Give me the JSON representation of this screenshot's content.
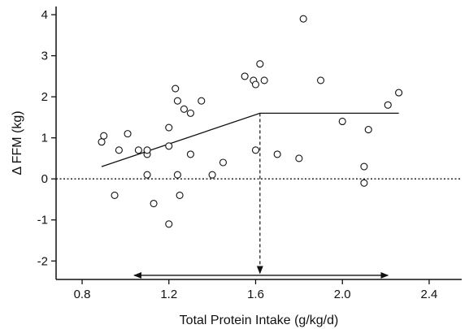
{
  "chart_data": {
    "type": "scatter",
    "title": "",
    "xlabel": "Total Protein Intake (g/kg/d)",
    "ylabel": "Δ FFM (kg)",
    "xlim": [
      0.68,
      2.55
    ],
    "ylim": [
      -2.45,
      4.2
    ],
    "xticks": [
      "0.8",
      "1.2",
      "1.6",
      "2.0",
      "2.4"
    ],
    "yticks": [
      "-2",
      "-1",
      "0",
      "1",
      "2",
      "3",
      "4"
    ],
    "grid": false,
    "legend": "none",
    "points": [
      {
        "x": 0.89,
        "y": 0.9
      },
      {
        "x": 0.9,
        "y": 1.05
      },
      {
        "x": 0.95,
        "y": -0.4
      },
      {
        "x": 0.97,
        "y": 0.7
      },
      {
        "x": 1.01,
        "y": 1.1
      },
      {
        "x": 1.06,
        "y": 0.7
      },
      {
        "x": 1.1,
        "y": 0.1
      },
      {
        "x": 1.1,
        "y": 0.6
      },
      {
        "x": 1.1,
        "y": 0.7
      },
      {
        "x": 1.13,
        "y": -0.6
      },
      {
        "x": 1.2,
        "y": -1.1
      },
      {
        "x": 1.2,
        "y": 0.8
      },
      {
        "x": 1.2,
        "y": 1.25
      },
      {
        "x": 1.23,
        "y": 2.2
      },
      {
        "x": 1.24,
        "y": 1.9
      },
      {
        "x": 1.24,
        "y": 0.1
      },
      {
        "x": 1.25,
        "y": -0.4
      },
      {
        "x": 1.27,
        "y": 1.7
      },
      {
        "x": 1.3,
        "y": 1.6
      },
      {
        "x": 1.3,
        "y": 0.6
      },
      {
        "x": 1.35,
        "y": 1.9
      },
      {
        "x": 1.4,
        "y": 0.1
      },
      {
        "x": 1.45,
        "y": 0.4
      },
      {
        "x": 1.55,
        "y": 2.5
      },
      {
        "x": 1.59,
        "y": 2.4
      },
      {
        "x": 1.6,
        "y": 2.3
      },
      {
        "x": 1.6,
        "y": 0.7
      },
      {
        "x": 1.62,
        "y": 2.8
      },
      {
        "x": 1.64,
        "y": 2.4
      },
      {
        "x": 1.7,
        "y": 0.6
      },
      {
        "x": 1.8,
        "y": 0.5
      },
      {
        "x": 1.82,
        "y": 3.9
      },
      {
        "x": 1.9,
        "y": 2.4
      },
      {
        "x": 2.0,
        "y": 1.4
      },
      {
        "x": 2.1,
        "y": 0.3
      },
      {
        "x": 2.1,
        "y": -0.1
      },
      {
        "x": 2.12,
        "y": 1.2
      },
      {
        "x": 2.21,
        "y": 1.8
      },
      {
        "x": 2.26,
        "y": 2.1
      }
    ],
    "fit_line": [
      {
        "x": 0.89,
        "y": 0.3
      },
      {
        "x": 1.62,
        "y": 1.6
      },
      {
        "x": 2.26,
        "y": 1.6
      }
    ],
    "zero_line": {
      "y": 0,
      "style": "dotted"
    },
    "breakpoint": {
      "x": 1.62,
      "from_y": 1.6,
      "to_y": -2.3,
      "style": "dashed-arrow"
    },
    "range_arrow": {
      "from_x": 1.04,
      "to_x": 2.21,
      "y": -2.35,
      "style": "double-arrow"
    }
  }
}
